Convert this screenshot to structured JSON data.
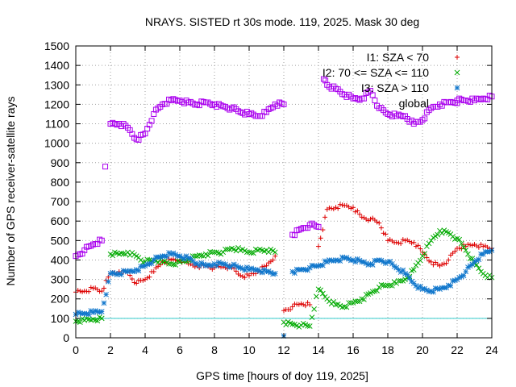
{
  "chart_data": {
    "type": "scatter",
    "title": "NRAYS. SISTED rt 30s mode. 119, 2025. Mask 30 deg",
    "xlabel": "GPS time [hours of doy 119, 2025]",
    "ylabel": "Number of GPS receiver-satellite rays",
    "xlim": [
      0,
      24
    ],
    "ylim": [
      0,
      1500
    ],
    "x_ticks": [
      0,
      2,
      4,
      6,
      8,
      10,
      12,
      14,
      16,
      18,
      20,
      22,
      24
    ],
    "y_ticks": [
      0,
      100,
      200,
      300,
      400,
      500,
      600,
      700,
      800,
      900,
      1000,
      1100,
      1200,
      1300,
      1400,
      1500
    ],
    "grid": true,
    "legend_position": "top-right",
    "reference_line": {
      "y": 100,
      "color": "#33cccc"
    },
    "series": [
      {
        "name": "I1: SZA < 70",
        "marker": "+",
        "color": "#dd0000",
        "x": [
          0,
          0.5,
          1,
          1.5,
          2,
          2.5,
          3,
          3.5,
          4,
          4.5,
          5,
          5.5,
          6,
          6.5,
          7,
          7.5,
          8,
          8.5,
          9,
          9.5,
          10,
          10.5,
          11,
          11.5,
          12,
          12.5,
          13,
          13.5,
          14,
          14.5,
          15,
          15.5,
          16,
          16.5,
          17,
          17.5,
          18,
          18.5,
          19,
          19.5,
          20,
          20.5,
          21,
          21.5,
          22,
          22.5,
          23,
          23.5,
          24
        ],
        "values": [
          235,
          240,
          255,
          240,
          330,
          340,
          335,
          280,
          300,
          340,
          390,
          400,
          400,
          380,
          370,
          370,
          360,
          365,
          360,
          320,
          320,
          340,
          370,
          420,
          140,
          160,
          175,
          170,
          470,
          660,
          670,
          680,
          670,
          620,
          610,
          590,
          500,
          490,
          500,
          490,
          440,
          390,
          370,
          400,
          460,
          470,
          480,
          470,
          460
        ]
      },
      {
        "name": "I2: 70 <= SZA <= 110",
        "marker": "x",
        "color": "#00aa00",
        "x": [
          0,
          0.5,
          1,
          1.5,
          2,
          2.5,
          3,
          3.5,
          4,
          4.5,
          5,
          5.5,
          6,
          6.5,
          7,
          7.5,
          8,
          8.5,
          9,
          9.5,
          10,
          10.5,
          11,
          11.5,
          12,
          12.5,
          13,
          13.5,
          14,
          14.5,
          15,
          15.5,
          16,
          16.5,
          17,
          17.5,
          18,
          18.5,
          19,
          19.5,
          20,
          20.5,
          21,
          21.5,
          22,
          22.5,
          23,
          23.5,
          24
        ],
        "values": [
          85,
          90,
          95,
          100,
          430,
          430,
          440,
          420,
          390,
          400,
          390,
          380,
          390,
          400,
          420,
          430,
          440,
          440,
          460,
          450,
          440,
          450,
          450,
          440,
          80,
          70,
          65,
          60,
          250,
          200,
          170,
          160,
          180,
          200,
          230,
          260,
          270,
          280,
          300,
          350,
          420,
          500,
          550,
          540,
          510,
          450,
          380,
          330,
          310
        ]
      },
      {
        "name": "I3: SZA > 110",
        "marker": "*",
        "color": "#1177cc",
        "x": [
          0,
          0.5,
          1,
          1.5,
          2,
          2.5,
          3,
          3.5,
          4,
          4.5,
          5,
          5.5,
          6,
          6.5,
          7,
          7.5,
          8,
          8.5,
          9,
          9.5,
          10,
          10.5,
          11,
          11.5,
          12,
          12.5,
          13,
          13.5,
          14,
          14.5,
          15,
          15.5,
          16,
          16.5,
          17,
          17.5,
          18,
          18.5,
          19,
          19.5,
          20,
          20.5,
          21,
          21.5,
          22,
          22.5,
          23,
          23.5,
          24
        ],
        "values": [
          120,
          125,
          130,
          135,
          330,
          330,
          340,
          350,
          370,
          400,
          420,
          430,
          420,
          410,
          380,
          370,
          380,
          380,
          370,
          360,
          350,
          350,
          340,
          330,
          10,
          340,
          350,
          360,
          370,
          390,
          400,
          410,
          400,
          390,
          380,
          400,
          390,
          360,
          330,
          280,
          250,
          240,
          250,
          270,
          300,
          340,
          390,
          430,
          450
        ]
      },
      {
        "name": "global",
        "marker": "square",
        "color": "#aa00ee",
        "x": [
          0,
          0.5,
          1,
          1.5,
          1.7,
          2,
          2.5,
          3,
          3.5,
          4,
          4.5,
          5,
          5.5,
          6,
          6.5,
          7,
          7.5,
          8,
          8.5,
          9,
          9.5,
          10,
          10.5,
          11,
          11.5,
          12,
          12.5,
          13,
          13.5,
          14,
          14.3,
          14.5,
          15,
          15.5,
          16,
          16.5,
          17,
          17.5,
          18,
          18.5,
          19,
          19.5,
          20,
          20.5,
          21,
          21.5,
          22,
          22.5,
          23,
          23.5,
          24
        ],
        "values": [
          420,
          450,
          480,
          500,
          880,
          1100,
          1100,
          1080,
          1020,
          1050,
          1150,
          1200,
          1220,
          1220,
          1210,
          1200,
          1210,
          1200,
          1190,
          1180,
          1160,
          1150,
          1140,
          1160,
          1200,
          1200,
          530,
          560,
          580,
          570,
          1330,
          1300,
          1280,
          1250,
          1230,
          1230,
          1270,
          1180,
          1150,
          1140,
          1140,
          1100,
          1120,
          1180,
          1200,
          1210,
          1220,
          1220,
          1220,
          1230,
          1240
        ]
      }
    ]
  }
}
